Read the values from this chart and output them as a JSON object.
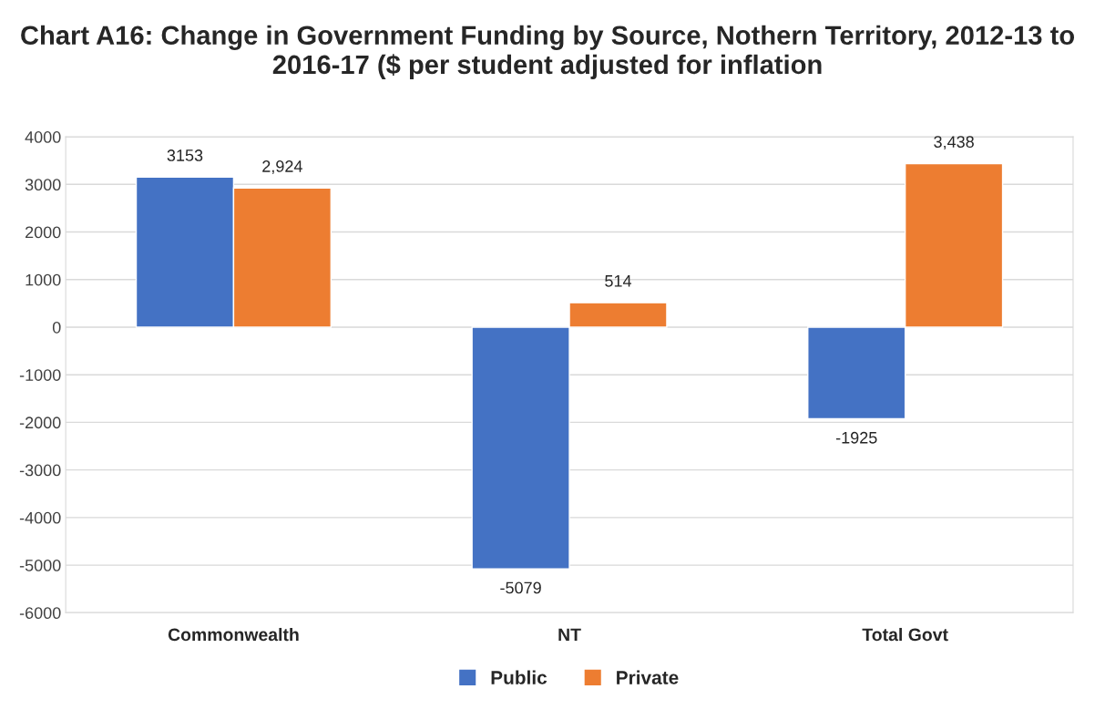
{
  "chart_data": {
    "type": "bar",
    "title": "Chart A16: Change in Government Funding by Source, Nothern Territory, 2012-13 to 2016-17 ($ per student adjusted for inflation",
    "categories": [
      "Commonwealth",
      "NT",
      "Total Govt"
    ],
    "series": [
      {
        "name": "Public",
        "color": "#4472c4",
        "values": [
          3153,
          -5079,
          -1925
        ],
        "value_labels": [
          "3153",
          "-5079",
          "-1925"
        ]
      },
      {
        "name": "Private",
        "color": "#ed7d31",
        "values": [
          2924,
          514,
          3438
        ],
        "value_labels": [
          "2,924",
          "514",
          "3,438"
        ]
      }
    ],
    "ylim": [
      -6000,
      4000
    ],
    "yticks": [
      -6000,
      -5000,
      -4000,
      -3000,
      -2000,
      -1000,
      0,
      1000,
      2000,
      3000,
      4000
    ],
    "grid": "y",
    "legend": "bottom"
  }
}
